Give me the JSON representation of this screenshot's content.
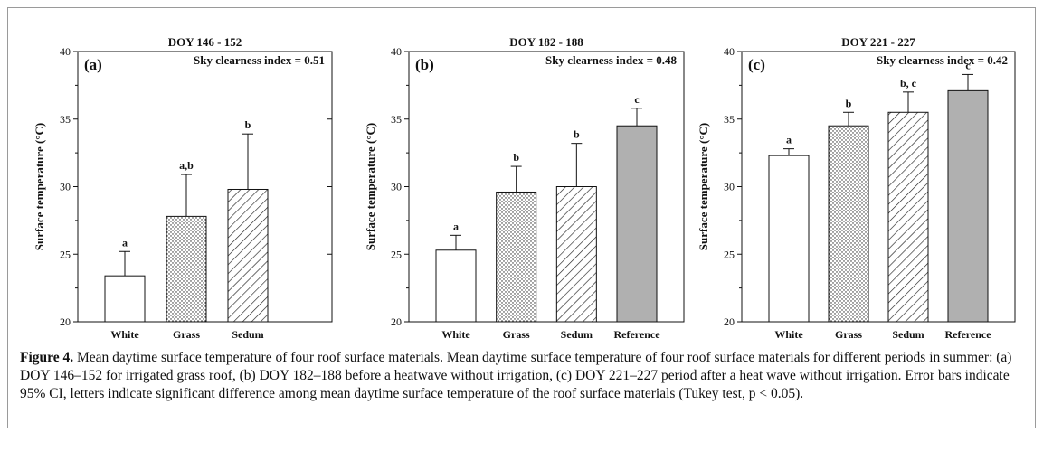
{
  "figure": {
    "caption_label": "Figure 4.",
    "caption_text": "Mean daytime surface temperature of four roof surface materials. Mean daytime surface temperature of four roof surface materials for different periods in summer: (a) DOY 146–152 for irrigated grass roof, (b) DOY 182–188 before a heatwave without irrigation, (c) DOY 221–227 period after a heat wave without irrigation. Error bars indicate 95% CI, letters indicate significant difference among mean daytime surface temperature of the roof surface materials (Tukey test, p < 0.05)."
  },
  "patterns": {
    "White": "white",
    "Grass": "dots",
    "Sedum": "hatch",
    "Reference": "gray"
  },
  "colors": {
    "reference_fill": "#b0b0b0",
    "frame": "#9a9a9a"
  },
  "chart_data": [
    {
      "type": "bar",
      "title": "DOY 146 - 152",
      "panel_label": "(a)",
      "annotation": "Sky clearness index = 0.51",
      "ylabel": "Surface temperature (°C)",
      "ylim": [
        20,
        40
      ],
      "yticks": [
        "20",
        "25",
        "30",
        "35",
        "40"
      ],
      "categories": [
        "White",
        "Grass",
        "Sedum"
      ],
      "values": [
        23.4,
        27.8,
        29.8
      ],
      "errors": [
        1.8,
        3.1,
        4.1
      ],
      "letters": [
        "a",
        "a,b",
        "b"
      ]
    },
    {
      "type": "bar",
      "title": "DOY 182 - 188",
      "panel_label": "(b)",
      "annotation": "Sky clearness index = 0.48",
      "ylabel": "Surface temperature (°C)",
      "ylim": [
        20,
        40
      ],
      "yticks": [
        "20",
        "25",
        "30",
        "35",
        "40"
      ],
      "categories": [
        "White",
        "Grass",
        "Sedum",
        "Reference"
      ],
      "values": [
        25.3,
        29.6,
        30.0,
        34.5
      ],
      "errors": [
        1.1,
        1.9,
        3.2,
        1.3
      ],
      "letters": [
        "a",
        "b",
        "b",
        "c"
      ]
    },
    {
      "type": "bar",
      "title": "DOY 221 - 227",
      "panel_label": "(c)",
      "annotation": "Sky clearness index = 0.42",
      "ylabel": "Surface temperature (°C)",
      "ylim": [
        20,
        40
      ],
      "yticks": [
        "20",
        "25",
        "30",
        "35",
        "40"
      ],
      "categories": [
        "White",
        "Grass",
        "Sedum",
        "Reference"
      ],
      "values": [
        32.3,
        34.5,
        35.5,
        37.1
      ],
      "errors": [
        0.5,
        1.0,
        1.5,
        1.2
      ],
      "letters": [
        "a",
        "b",
        "b, c",
        "c"
      ]
    }
  ]
}
